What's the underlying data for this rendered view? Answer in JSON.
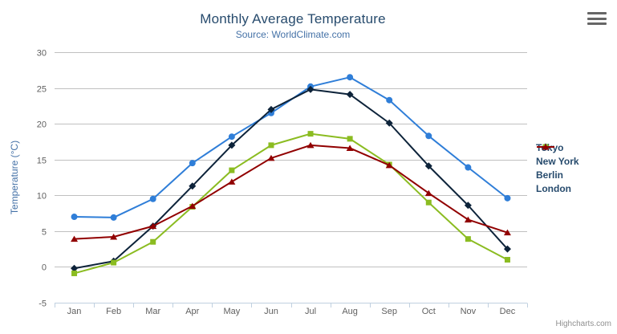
{
  "header": {
    "title": "Monthly Average Temperature",
    "subtitle": "Source: WorldClimate.com"
  },
  "credits": {
    "label": "Highcharts.com"
  },
  "chart_data": {
    "type": "line",
    "title": "Monthly Average Temperature",
    "subtitle": "Source: WorldClimate.com",
    "xlabel": "",
    "ylabel": "Temperature (°C)",
    "categories": [
      "Jan",
      "Feb",
      "Mar",
      "Apr",
      "May",
      "Jun",
      "Jul",
      "Aug",
      "Sep",
      "Oct",
      "Nov",
      "Dec"
    ],
    "series": [
      {
        "name": "Tokyo",
        "color": "#2f7ed8",
        "marker": "circle",
        "values": [
          7.0,
          6.9,
          9.5,
          14.5,
          18.2,
          21.5,
          25.2,
          26.5,
          23.3,
          18.3,
          13.9,
          9.6
        ]
      },
      {
        "name": "New York",
        "color": "#0d233a",
        "marker": "diamond",
        "values": [
          -0.2,
          0.8,
          5.7,
          11.3,
          17.0,
          22.0,
          24.8,
          24.1,
          20.1,
          14.1,
          8.6,
          2.5
        ]
      },
      {
        "name": "Berlin",
        "color": "#8bbc21",
        "marker": "square",
        "values": [
          -0.9,
          0.6,
          3.5,
          8.4,
          13.5,
          17.0,
          18.6,
          17.9,
          14.3,
          9.0,
          3.9,
          1.0
        ]
      },
      {
        "name": "London",
        "color": "#910000",
        "marker": "triangle",
        "values": [
          3.9,
          4.2,
          5.7,
          8.5,
          11.9,
          15.2,
          17.0,
          16.6,
          14.2,
          10.3,
          6.6,
          4.8
        ]
      }
    ],
    "ylim": [
      -5,
      30
    ],
    "yticks": [
      -5,
      0,
      5,
      10,
      15,
      20,
      25,
      30
    ],
    "grid": true,
    "legend_position": "right"
  },
  "colors": {
    "title": "#274b6d",
    "subtitle": "#4572A7",
    "axis_title": "#4572A7",
    "tick_label": "#606060",
    "grid_line": "#C0C0C0",
    "axis_line": "#C0D0E0",
    "legend_text": "#274b6d",
    "credits": "#909090",
    "menu_icon": "#666666"
  }
}
